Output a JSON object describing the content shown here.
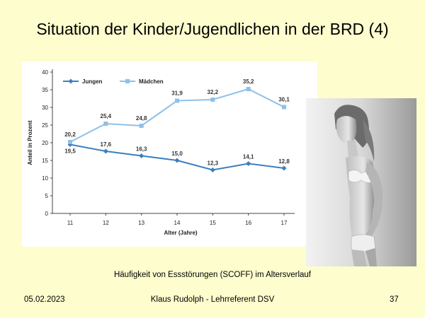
{
  "slide": {
    "title": "Situation der Kinder/Jugendlichen in der BRD (4)",
    "caption": "Häufigkeit von Essstörungen (SCOFF) im Altersverlauf",
    "footer_date": "05.02.2023",
    "footer_author": "Klaus Rudolph  - Lehrreferent DSV",
    "footer_page": "37"
  },
  "colors": {
    "background": "#fdfdce",
    "jungen": "#3a7fc1",
    "maedchen": "#8ec0e8"
  },
  "chart_data": {
    "type": "line",
    "x": [
      11,
      12,
      13,
      14,
      15,
      16,
      17
    ],
    "xlabel": "Alter (Jahre)",
    "ylabel": "Anteil in Prozent",
    "ylim": [
      0,
      40
    ],
    "yticks": [
      0,
      5,
      10,
      15,
      20,
      25,
      30,
      35,
      40
    ],
    "legend_position": "top-left",
    "series": [
      {
        "name": "Jungen",
        "values": [
          19.5,
          17.6,
          16.3,
          15.0,
          12.3,
          14.1,
          12.8
        ],
        "labels": [
          "19,5",
          "17,6",
          "16,3",
          "15,0",
          "12,3",
          "14,1",
          "12,8"
        ],
        "marker": "diamond",
        "color": "#3a7fc1"
      },
      {
        "name": "Mädchen",
        "values": [
          20.2,
          25.4,
          24.8,
          31.9,
          32.2,
          35.2,
          30.1
        ],
        "labels": [
          "20,2",
          "25,4",
          "24,8",
          "31,9",
          "32,2",
          "35,2",
          "30,1"
        ],
        "marker": "square",
        "color": "#8ec0e8"
      }
    ]
  },
  "photo": {
    "description_icon": "person-photo-icon"
  }
}
